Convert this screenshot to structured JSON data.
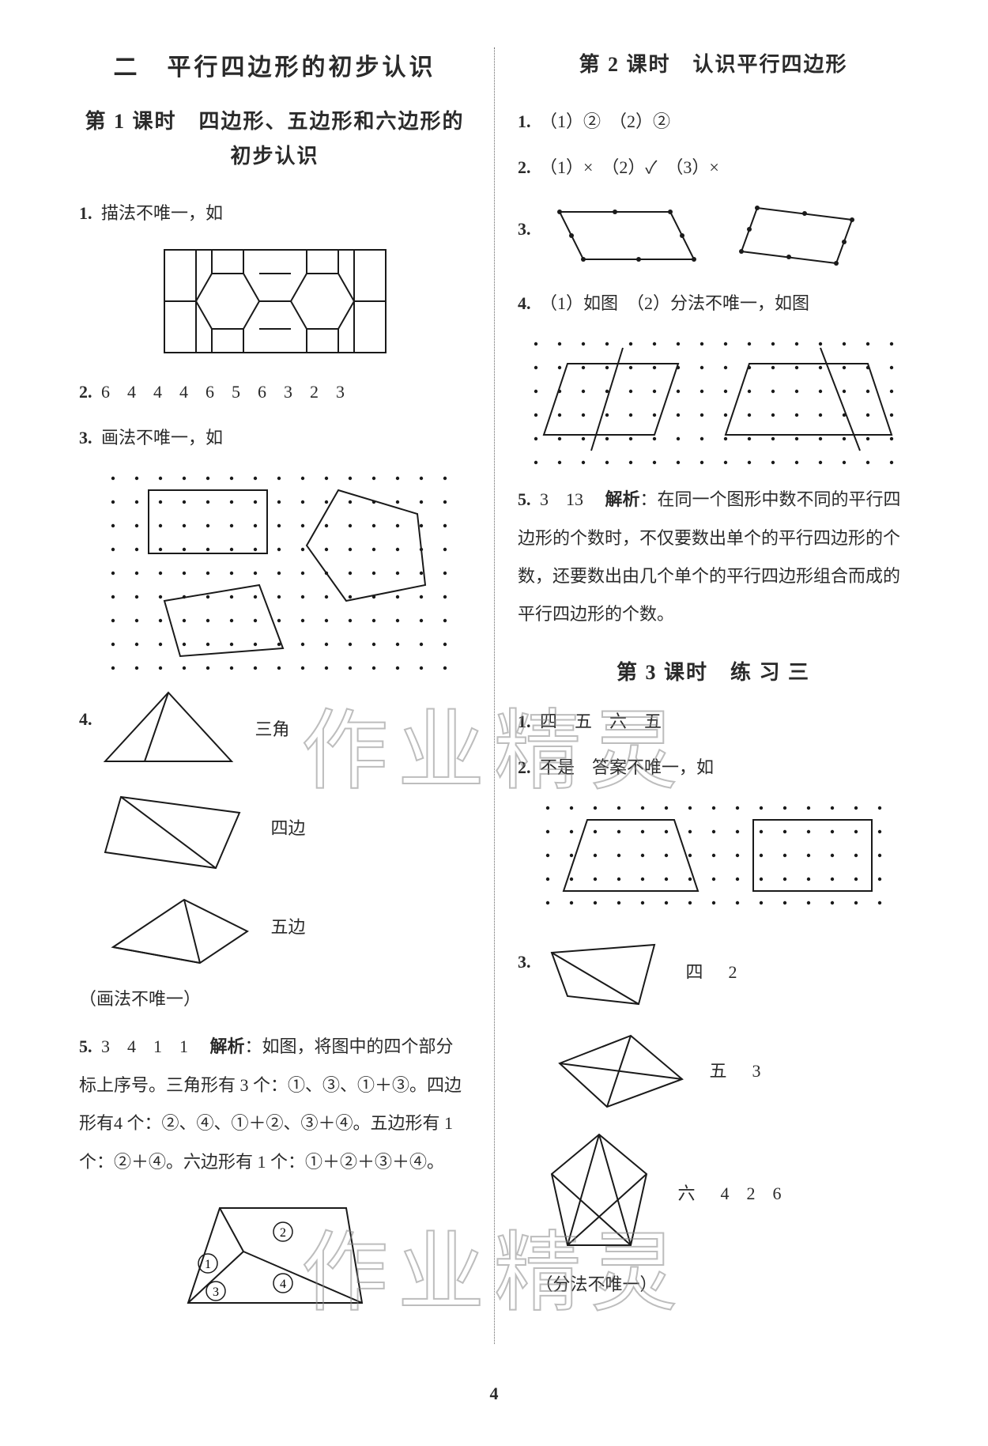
{
  "left": {
    "title": "二　平行四边形的初步认识",
    "lesson1_title": "第 1 课时　四边形、五边形和六边形的\n初步认识",
    "q1": {
      "num": "1.",
      "text": "描法不唯一，如"
    },
    "q2": {
      "num": "2.",
      "values": "6　4　4　4　6　5　6　3　2　3"
    },
    "q3": {
      "num": "3.",
      "text": "画法不唯一，如"
    },
    "q4": {
      "num": "4.",
      "labels": {
        "tri": "三角",
        "quad": "四边",
        "penta": "五边"
      },
      "note": "（画法不唯一）"
    },
    "q5": {
      "num": "5.",
      "answers": "3　4　1　1",
      "analysis_label": "解析",
      "analysis": "：如图，将图中的四个部分标上序号。三角形有 3 个：①、③、①＋③。四边形有4 个：②、④、①＋②、③＋④。五边形有 1 个：②＋④。六边形有 1 个：①＋②＋③＋④。"
    }
  },
  "right": {
    "lesson2_title": "第 2 课时　认识平行四边形",
    "q1": {
      "num": "1.",
      "text": "（1）②　（2）②"
    },
    "q2": {
      "num": "2.",
      "text": "（1）×　（2）✓　（3）×"
    },
    "q3": {
      "num": "3."
    },
    "q4": {
      "num": "4.",
      "text": "（1）如图　（2）分法不唯一，如图"
    },
    "q5": {
      "num": "5.",
      "answers": "3　13",
      "analysis_label": "解析",
      "analysis": "：在同一个图形中数不同的平行四边形的个数时，不仅要数出单个的平行四边形的个数，还要数出由几个单个的平行四边形组合而成的平行四边形的个数。"
    },
    "lesson3_title": "第 3 课时　练 习 三",
    "l3q1": {
      "num": "1.",
      "text": "四　五　六　五"
    },
    "l3q2": {
      "num": "2.",
      "text": "不是　答案不唯一，如"
    },
    "l3q3": {
      "num": "3.",
      "rows": [
        {
          "label": "四",
          "val": "2"
        },
        {
          "label": "五",
          "val": "3"
        },
        {
          "label": "六",
          "vals": "4　2　6"
        }
      ],
      "note": "（分法不唯一）"
    }
  },
  "watermark": "作业精灵",
  "page_number": "4",
  "colors": {
    "text": "#2a2a2a",
    "stroke": "#1a1a1a",
    "dot": "#1a1a1a",
    "bg": "#ffffff"
  }
}
